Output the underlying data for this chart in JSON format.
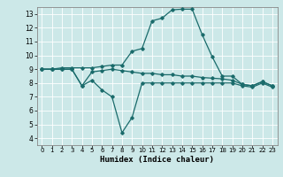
{
  "title": "",
  "xlabel": "Humidex (Indice chaleur)",
  "ylabel": "",
  "bg_color": "#cce8e8",
  "line_color": "#1a6b6b",
  "xlim": [
    -0.5,
    23.5
  ],
  "ylim": [
    3.5,
    13.5
  ],
  "xticks": [
    0,
    1,
    2,
    3,
    4,
    5,
    6,
    7,
    8,
    9,
    10,
    11,
    12,
    13,
    14,
    15,
    16,
    17,
    18,
    19,
    20,
    21,
    22,
    23
  ],
  "yticks": [
    4,
    5,
    6,
    7,
    8,
    9,
    10,
    11,
    12,
    13
  ],
  "line1_x": [
    0,
    1,
    2,
    3,
    4,
    5,
    6,
    7,
    8,
    9,
    10,
    11,
    12,
    13,
    14,
    15,
    16,
    17,
    18,
    19,
    20,
    21,
    22,
    23
  ],
  "line1_y": [
    9.0,
    9.0,
    9.1,
    9.1,
    9.1,
    9.1,
    9.2,
    9.3,
    9.3,
    10.3,
    10.5,
    12.5,
    12.7,
    13.3,
    13.35,
    13.35,
    11.5,
    9.9,
    8.5,
    8.5,
    7.9,
    7.8,
    8.1,
    7.8
  ],
  "line2_x": [
    0,
    1,
    2,
    3,
    4,
    5,
    6,
    7,
    8,
    9,
    10,
    11,
    12,
    13,
    14,
    15,
    16,
    17,
    18,
    19,
    20,
    21,
    22,
    23
  ],
  "line2_y": [
    9.0,
    9.0,
    9.0,
    9.0,
    7.8,
    8.8,
    8.9,
    9.0,
    8.9,
    8.8,
    8.7,
    8.7,
    8.6,
    8.6,
    8.5,
    8.5,
    8.4,
    8.35,
    8.3,
    8.2,
    7.9,
    7.8,
    8.1,
    7.8
  ],
  "line3_x": [
    0,
    1,
    2,
    3,
    4,
    5,
    6,
    7,
    8,
    9,
    10,
    11,
    12,
    13,
    14,
    15,
    16,
    17,
    18,
    19,
    20,
    21,
    22,
    23
  ],
  "line3_y": [
    9.0,
    9.0,
    9.0,
    9.0,
    7.8,
    8.2,
    7.5,
    7.0,
    4.4,
    5.5,
    8.0,
    8.0,
    8.0,
    8.0,
    8.0,
    8.0,
    8.0,
    8.0,
    8.0,
    8.0,
    7.8,
    7.7,
    8.0,
    7.7
  ]
}
